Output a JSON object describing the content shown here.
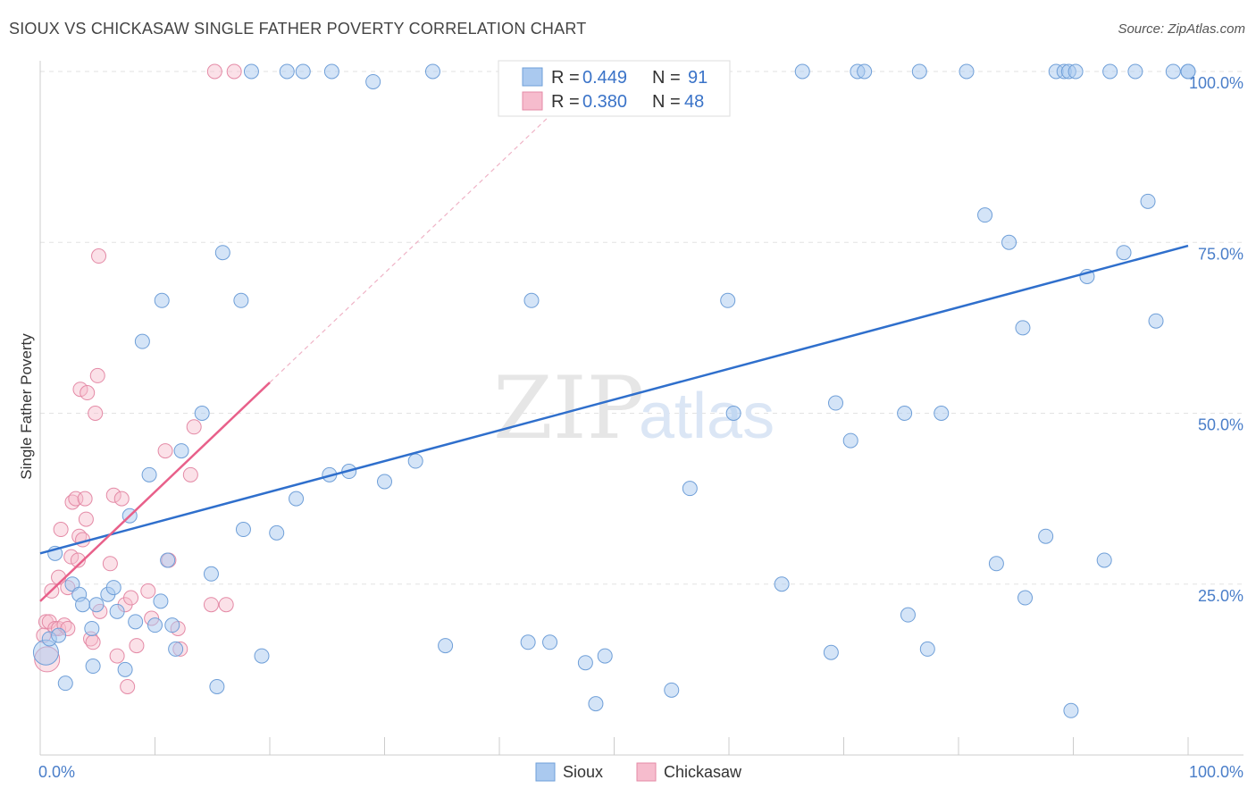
{
  "title": "SIOUX VS CHICKASAW SINGLE FATHER POVERTY CORRELATION CHART",
  "source": "Source: ZipAtlas.com",
  "watermark": {
    "zip": "ZIP",
    "atlas": "atlas"
  },
  "chart_data": {
    "type": "scatter",
    "title": "SIOUX VS CHICKASAW SINGLE FATHER POVERTY CORRELATION CHART",
    "xlabel": "",
    "ylabel": "Single Father Poverty",
    "xlim": [
      0,
      100
    ],
    "ylim": [
      0,
      100
    ],
    "x_tick_labels": [
      "0.0%",
      "100.0%"
    ],
    "y_tick_labels": [
      "25.0%",
      "50.0%",
      "75.0%",
      "100.0%"
    ],
    "legend": [
      {
        "name": "Sioux",
        "r_label": "R =",
        "r_value": "0.449",
        "n_label": "N =",
        "n_value": "91"
      },
      {
        "name": "Chickasaw",
        "r_label": "R =",
        "r_value": "0.380",
        "n_label": "N =",
        "n_value": "48"
      }
    ],
    "colors": {
      "sioux_fill": "#aac9ef",
      "sioux_stroke": "#6f9fd8",
      "sioux_line": "#2f6fcc",
      "chick_fill": "#f6bccd",
      "chick_stroke": "#e48aa6",
      "chick_line": "#e8608a"
    },
    "series": [
      {
        "name": "Sioux",
        "trend": {
          "x": [
            0,
            100
          ],
          "y": [
            29.5,
            74.5
          ]
        },
        "points": [
          [
            0.5,
            15
          ],
          [
            0.8,
            17
          ],
          [
            1.3,
            29.5
          ],
          [
            1.6,
            17.5
          ],
          [
            2.2,
            10.5
          ],
          [
            2.8,
            25
          ],
          [
            3.4,
            23.5
          ],
          [
            3.7,
            22
          ],
          [
            4.5,
            18.5
          ],
          [
            4.6,
            13
          ],
          [
            4.9,
            22
          ],
          [
            5.9,
            23.5
          ],
          [
            6.4,
            24.5
          ],
          [
            6.7,
            21
          ],
          [
            7.4,
            12.5
          ],
          [
            7.8,
            35
          ],
          [
            8.3,
            19.5
          ],
          [
            8.9,
            60.5
          ],
          [
            9.5,
            41
          ],
          [
            10,
            19
          ],
          [
            10.5,
            22.5
          ],
          [
            10.6,
            66.5
          ],
          [
            11.1,
            28.5
          ],
          [
            11.5,
            19
          ],
          [
            11.8,
            15.5
          ],
          [
            12.3,
            44.5
          ],
          [
            14.1,
            50
          ],
          [
            14.9,
            26.5
          ],
          [
            15.4,
            10
          ],
          [
            15.9,
            73.5
          ],
          [
            17.5,
            66.5
          ],
          [
            17.7,
            33
          ],
          [
            18.4,
            100
          ],
          [
            19.3,
            14.5
          ],
          [
            20.6,
            32.5
          ],
          [
            21.5,
            100
          ],
          [
            22.3,
            37.5
          ],
          [
            22.9,
            100
          ],
          [
            25.2,
            41
          ],
          [
            25.4,
            100
          ],
          [
            26.9,
            41.5
          ],
          [
            29,
            98.5
          ],
          [
            30,
            40
          ],
          [
            32.7,
            43
          ],
          [
            34.2,
            100
          ],
          [
            35.3,
            16
          ],
          [
            42.5,
            16.5
          ],
          [
            42.8,
            66.5
          ],
          [
            44.4,
            16.5
          ],
          [
            47.5,
            13.5
          ],
          [
            48.3,
            100
          ],
          [
            48.4,
            7.5
          ],
          [
            49.2,
            14.5
          ],
          [
            55,
            9.5
          ],
          [
            56.6,
            39
          ],
          [
            59.9,
            66.5
          ],
          [
            60.4,
            50
          ],
          [
            64.6,
            25
          ],
          [
            66.4,
            100
          ],
          [
            68.9,
            15
          ],
          [
            69.3,
            51.5
          ],
          [
            70.6,
            46
          ],
          [
            71.2,
            100
          ],
          [
            71.8,
            100
          ],
          [
            75.3,
            50
          ],
          [
            75.6,
            20.5
          ],
          [
            76.6,
            100
          ],
          [
            77.3,
            15.5
          ],
          [
            78.5,
            50
          ],
          [
            80.7,
            100
          ],
          [
            82.3,
            79
          ],
          [
            83.3,
            28
          ],
          [
            84.4,
            75
          ],
          [
            85.6,
            62.5
          ],
          [
            85.8,
            23
          ],
          [
            87.6,
            32
          ],
          [
            88.5,
            100
          ],
          [
            89.2,
            100
          ],
          [
            89.6,
            100
          ],
          [
            89.8,
            6.5
          ],
          [
            90.2,
            100
          ],
          [
            91.2,
            70
          ],
          [
            92.7,
            28.5
          ],
          [
            93.2,
            100
          ],
          [
            94.4,
            73.5
          ],
          [
            95.4,
            100
          ],
          [
            96.5,
            81
          ],
          [
            97.2,
            63.5
          ],
          [
            98.7,
            100
          ],
          [
            100,
            100
          ],
          [
            100,
            100
          ]
        ]
      },
      {
        "name": "Chickasaw",
        "trend": {
          "x": [
            0,
            20
          ],
          "y": [
            22.5,
            54.5
          ]
        },
        "trend_dashed": {
          "x": [
            20,
            45
          ],
          "y": [
            54.5,
            94.5
          ]
        },
        "points": [
          [
            0.5,
            19.5
          ],
          [
            0.8,
            19.5
          ],
          [
            1,
            24
          ],
          [
            1.3,
            18.5
          ],
          [
            1.6,
            18.5
          ],
          [
            1.6,
            26
          ],
          [
            1.8,
            33
          ],
          [
            2.1,
            19
          ],
          [
            2.4,
            18.5
          ],
          [
            2.4,
            24.5
          ],
          [
            2.7,
            29
          ],
          [
            2.8,
            37
          ],
          [
            3.1,
            37.5
          ],
          [
            3.3,
            28.5
          ],
          [
            3.4,
            32
          ],
          [
            3.5,
            53.5
          ],
          [
            3.7,
            31.5
          ],
          [
            3.9,
            37.5
          ],
          [
            4,
            34.5
          ],
          [
            4.1,
            53
          ],
          [
            4.4,
            17
          ],
          [
            4.6,
            16.5
          ],
          [
            4.8,
            50
          ],
          [
            5,
            55.5
          ],
          [
            5.1,
            73
          ],
          [
            5.2,
            21
          ],
          [
            6.1,
            28
          ],
          [
            6.4,
            38
          ],
          [
            6.7,
            14.5
          ],
          [
            7.1,
            37.5
          ],
          [
            7.4,
            22
          ],
          [
            7.6,
            10
          ],
          [
            7.9,
            23
          ],
          [
            8.4,
            16
          ],
          [
            9.4,
            24
          ],
          [
            9.7,
            20
          ],
          [
            10.9,
            44.5
          ],
          [
            11.2,
            28.5
          ],
          [
            12,
            18.5
          ],
          [
            12.2,
            15.5
          ],
          [
            13.1,
            41
          ],
          [
            13.4,
            48
          ],
          [
            14.9,
            22
          ],
          [
            15.2,
            100
          ],
          [
            16.2,
            22
          ],
          [
            16.9,
            100
          ],
          [
            0.3,
            17.5
          ],
          [
            0.6,
            14
          ]
        ]
      }
    ]
  }
}
